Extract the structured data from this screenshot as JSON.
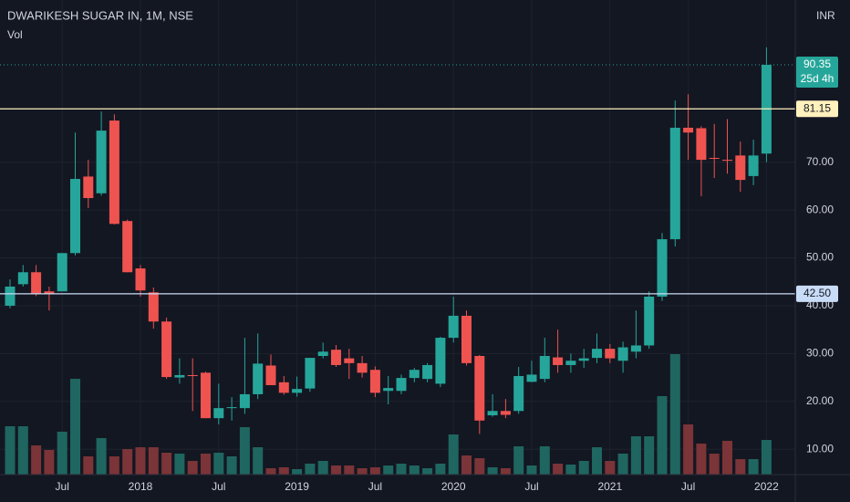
{
  "chart_data": {
    "type": "candlestick",
    "title": "DWARIKESH SUGAR IN, 1M, NSE",
    "volume_label": "Vol",
    "currency": "INR",
    "countdown": "25d 4h",
    "categories": [
      null,
      null,
      null,
      null,
      "Jul",
      null,
      null,
      null,
      null,
      null,
      "2018",
      null,
      null,
      null,
      null,
      null,
      "Jul",
      null,
      null,
      null,
      null,
      null,
      "2019",
      null,
      null,
      null,
      null,
      null,
      "Jul",
      null,
      null,
      null,
      null,
      null,
      "2020",
      null,
      null,
      null,
      null,
      null,
      "Jul",
      null,
      null,
      null,
      null,
      null,
      "2021",
      null,
      null,
      null,
      null,
      null,
      "Jul",
      null,
      null,
      null,
      null,
      null,
      "2022"
    ],
    "open": [
      40,
      44.5,
      47,
      43,
      43,
      51,
      67,
      63.5,
      78.7,
      57.7,
      47.8,
      42.8,
      36.7,
      25,
      25.5,
      26,
      16.5,
      18.6,
      18.6,
      21.5,
      27.5,
      24,
      21.8,
      22.7,
      29.5,
      30.8,
      29,
      28,
      26.6,
      22.2,
      22.2,
      24.9,
      24.7,
      23.7,
      33.3,
      37.9,
      29.5,
      17.1,
      18,
      18,
      24.1,
      24.7,
      29.2,
      27.6,
      28.5,
      29.1,
      31,
      28.5,
      30.4,
      31.7,
      41.9,
      53.9,
      77.2,
      77.1,
      70.9,
      70.5,
      71.4,
      67.1,
      71.8
    ],
    "high": [
      45.5,
      48.5,
      48.5,
      44,
      51,
      76.2,
      70.5,
      80.6,
      80,
      58,
      48.5,
      43.8,
      37.5,
      29,
      29,
      26.2,
      23.7,
      20.9,
      33.3,
      34.2,
      29.8,
      25.3,
      25.2,
      29.1,
      32.3,
      31.8,
      31,
      29.5,
      27.3,
      25.3,
      25.6,
      27,
      28,
      33.5,
      41.9,
      39,
      29.7,
      21.5,
      20.5,
      27.2,
      28.5,
      33.3,
      35,
      30,
      31,
      34.2,
      32,
      32.5,
      39,
      43,
      55.2,
      82.9,
      84.2,
      77.5,
      78,
      79,
      74.3,
      74.7,
      94
    ],
    "low": [
      39.5,
      44,
      42,
      39,
      43,
      50.5,
      60.4,
      63,
      57,
      47,
      41.9,
      35.2,
      24.7,
      23.7,
      18,
      16.5,
      15.2,
      16,
      17.4,
      20.5,
      23.4,
      21.4,
      21,
      22,
      29,
      27.2,
      24.7,
      25,
      20.9,
      19.4,
      21.5,
      24,
      24,
      23,
      32.3,
      27.5,
      13.2,
      16.8,
      16.5,
      17.4,
      24,
      24,
      26,
      26,
      27,
      28,
      28,
      26,
      29,
      31,
      41,
      52.4,
      70.5,
      62.9,
      66.7,
      67.6,
      63.8,
      65.2,
      70
    ],
    "close": [
      44,
      47,
      42.5,
      42.5,
      51,
      66.5,
      62.5,
      76.6,
      57.1,
      47,
      43.2,
      36.7,
      25.1,
      25.5,
      25.3,
      16.5,
      18.6,
      18.8,
      21.5,
      27.9,
      23.4,
      21.8,
      22.6,
      29.1,
      30.4,
      27.6,
      28,
      26,
      21.8,
      22.8,
      24.9,
      26.6,
      27.6,
      33.3,
      37.9,
      28,
      16,
      18,
      17.2,
      25.3,
      25.6,
      29.5,
      27.6,
      28.5,
      29,
      31,
      29,
      31.3,
      31.7,
      41.9,
      53.9,
      77.2,
      76.2,
      70.5,
      70.7,
      70.3,
      66.3,
      71.4,
      90.35
    ],
    "volume": [
      53,
      53,
      32,
      27,
      47,
      105,
      20,
      40,
      20,
      28,
      30,
      30,
      24,
      23,
      15,
      23,
      24,
      20,
      52,
      30,
      7,
      8,
      6,
      12,
      15,
      10,
      10,
      7,
      8,
      10,
      12,
      10,
      7,
      12,
      44,
      21,
      18,
      8,
      7,
      31,
      10,
      31,
      12,
      11,
      15,
      30,
      15,
      23,
      42,
      42,
      86,
      132,
      55,
      34,
      23,
      37,
      17,
      17,
      38
    ],
    "up_color": "#26a69a",
    "down_color": "#ef5350",
    "up_volume_color": "#1f6660",
    "down_volume_color": "#7b3437",
    "ylim": [
      4.7,
      103.9
    ],
    "yticks": [
      {
        "value": 10,
        "label": "10.00"
      },
      {
        "value": 20,
        "label": "20.00"
      },
      {
        "value": 30,
        "label": "30.00"
      },
      {
        "value": 40,
        "label": "40.00"
      },
      {
        "value": 50,
        "label": "50.00"
      },
      {
        "value": 60,
        "label": "60.00"
      },
      {
        "value": 70,
        "label": "70.00"
      }
    ],
    "levels": [
      {
        "value": 81.15,
        "label": "81.15",
        "color": "#fff1bd"
      },
      {
        "value": 42.5,
        "label": "42.50",
        "color": "#c9dcf7"
      }
    ],
    "grid": true
  }
}
